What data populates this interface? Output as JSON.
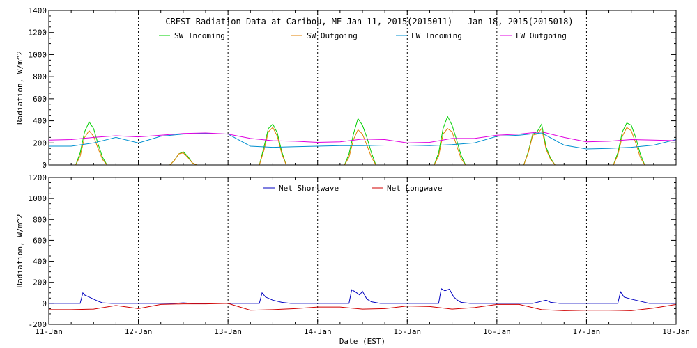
{
  "title": "CREST Radiation Data at Caribou, ME   Jan 11, 2015(2015011) - Jan 18, 2015(2015018)",
  "xlabel": "Date (EST)",
  "chart_data": [
    {
      "type": "line",
      "ylabel": "Radiation, W/m^2",
      "ylim": [
        0,
        1400
      ],
      "yticks": [
        0,
        200,
        400,
        600,
        800,
        1000,
        1200,
        1400
      ],
      "xlim": [
        0,
        7
      ],
      "xticks": [
        "11-Jan",
        "12-Jan",
        "13-Jan",
        "14-Jan",
        "15-Jan",
        "16-Jan",
        "17-Jan",
        "18-Jan"
      ],
      "grid": true,
      "legend": "top-center",
      "series": [
        {
          "name": "SW Incoming",
          "color": "#00d000",
          "x": [
            0,
            0.3,
            0.35,
            0.4,
            0.45,
            0.5,
            0.55,
            0.6,
            0.65,
            0.7,
            1,
            1.3,
            1.35,
            1.4,
            1.45,
            1.5,
            1.55,
            1.6,
            1.65,
            1.7,
            2,
            2.3,
            2.35,
            2.4,
            2.45,
            2.5,
            2.55,
            2.6,
            2.65,
            2.7,
            3,
            3.3,
            3.35,
            3.4,
            3.45,
            3.5,
            3.55,
            3.6,
            3.65,
            3.7,
            4,
            4.3,
            4.35,
            4.4,
            4.45,
            4.5,
            4.55,
            4.6,
            4.65,
            4.7,
            5,
            5.3,
            5.35,
            5.4,
            5.45,
            5.5,
            5.55,
            5.6,
            5.65,
            5.7,
            6,
            6.3,
            6.35,
            6.4,
            6.45,
            6.5,
            6.55,
            6.6,
            6.65,
            6.7,
            7
          ],
          "y": [
            0,
            0,
            110,
            300,
            390,
            330,
            190,
            70,
            0,
            0,
            0,
            0,
            0,
            40,
            100,
            120,
            80,
            20,
            0,
            0,
            0,
            0,
            0,
            160,
            330,
            370,
            290,
            120,
            0,
            0,
            0,
            0,
            100,
            280,
            420,
            360,
            250,
            110,
            0,
            0,
            0,
            0,
            110,
            330,
            440,
            360,
            230,
            90,
            0,
            0,
            0,
            0,
            120,
            280,
            300,
            370,
            160,
            60,
            0,
            0,
            0,
            0,
            110,
            300,
            380,
            360,
            250,
            100,
            0,
            0,
            0
          ]
        },
        {
          "name": "SW Outgoing",
          "color": "#e08000",
          "x": [
            0,
            0.3,
            0.35,
            0.4,
            0.45,
            0.5,
            0.55,
            0.6,
            0.65,
            0.7,
            1,
            1.3,
            1.35,
            1.4,
            1.45,
            1.5,
            1.55,
            1.6,
            1.65,
            1.7,
            2,
            2.3,
            2.35,
            2.4,
            2.45,
            2.5,
            2.55,
            2.6,
            2.65,
            2.7,
            3,
            3.3,
            3.35,
            3.4,
            3.45,
            3.5,
            3.55,
            3.6,
            3.65,
            3.7,
            4,
            4.3,
            4.35,
            4.4,
            4.45,
            4.5,
            4.55,
            4.6,
            4.65,
            4.7,
            5,
            5.3,
            5.35,
            5.4,
            5.45,
            5.5,
            5.55,
            5.6,
            5.65,
            5.7,
            6,
            6.3,
            6.35,
            6.4,
            6.45,
            6.5,
            6.55,
            6.6,
            6.65,
            6.7,
            7
          ],
          "y": [
            0,
            0,
            80,
            250,
            310,
            260,
            150,
            50,
            0,
            0,
            0,
            0,
            0,
            40,
            100,
            110,
            70,
            20,
            0,
            0,
            0,
            0,
            0,
            130,
            300,
            340,
            260,
            100,
            0,
            0,
            0,
            0,
            70,
            230,
            320,
            280,
            180,
            70,
            0,
            0,
            0,
            0,
            80,
            280,
            330,
            300,
            180,
            60,
            0,
            0,
            0,
            0,
            110,
            270,
            280,
            330,
            140,
            50,
            0,
            0,
            0,
            0,
            90,
            260,
            340,
            310,
            200,
            70,
            0,
            0,
            0
          ]
        },
        {
          "name": "LW Incoming",
          "color": "#0090d0",
          "x": [
            0,
            0.25,
            0.5,
            0.75,
            1,
            1.25,
            1.5,
            1.75,
            2,
            2.25,
            2.5,
            2.75,
            3,
            3.25,
            3.5,
            3.75,
            4,
            4.25,
            4.5,
            4.75,
            5,
            5.25,
            5.5,
            5.75,
            6,
            6.25,
            6.5,
            6.75,
            7
          ],
          "y": [
            170,
            170,
            200,
            250,
            200,
            260,
            280,
            285,
            280,
            170,
            160,
            165,
            170,
            175,
            175,
            180,
            180,
            175,
            185,
            200,
            260,
            270,
            290,
            180,
            145,
            150,
            160,
            180,
            230
          ]
        },
        {
          "name": "LW Outgoing",
          "color": "#e000e0",
          "x": [
            0,
            0.25,
            0.5,
            0.75,
            1,
            1.25,
            1.5,
            1.75,
            2,
            2.25,
            2.5,
            2.75,
            3,
            3.25,
            3.5,
            3.75,
            4,
            4.25,
            4.5,
            4.75,
            5,
            5.25,
            5.5,
            5.75,
            6,
            6.25,
            6.5,
            6.75,
            7
          ],
          "y": [
            225,
            230,
            250,
            265,
            255,
            270,
            285,
            290,
            280,
            240,
            220,
            215,
            205,
            210,
            235,
            230,
            200,
            205,
            240,
            240,
            270,
            280,
            300,
            250,
            210,
            215,
            230,
            225,
            220
          ]
        }
      ]
    },
    {
      "type": "line",
      "ylabel": "Radiation, W/m^2",
      "ylim": [
        -200,
        1200
      ],
      "yticks": [
        -200,
        0,
        200,
        400,
        600,
        800,
        1000,
        1200
      ],
      "xlim": [
        0,
        7
      ],
      "xticks": [
        "11-Jan",
        "12-Jan",
        "13-Jan",
        "14-Jan",
        "15-Jan",
        "16-Jan",
        "17-Jan",
        "18-Jan"
      ],
      "grid": true,
      "legend": "top-center",
      "series": [
        {
          "name": "Net Shortwave",
          "color": "#0000c0",
          "x": [
            0,
            0.35,
            0.38,
            0.4,
            0.45,
            0.5,
            0.55,
            0.6,
            0.7,
            1,
            1.4,
            1.5,
            1.6,
            2,
            2.35,
            2.38,
            2.42,
            2.5,
            2.6,
            2.7,
            3,
            3.35,
            3.38,
            3.42,
            3.47,
            3.5,
            3.55,
            3.6,
            3.7,
            4,
            4.35,
            4.38,
            4.42,
            4.47,
            4.52,
            4.56,
            4.6,
            4.7,
            5,
            5.4,
            5.45,
            5.5,
            5.55,
            5.6,
            5.7,
            6,
            6.35,
            6.38,
            6.42,
            6.5,
            6.6,
            6.7,
            7
          ],
          "y": [
            0,
            0,
            100,
            80,
            60,
            40,
            20,
            5,
            0,
            0,
            0,
            5,
            0,
            0,
            0,
            100,
            60,
            30,
            10,
            0,
            0,
            0,
            130,
            110,
            80,
            115,
            40,
            15,
            0,
            0,
            0,
            140,
            120,
            135,
            60,
            30,
            10,
            0,
            0,
            0,
            10,
            20,
            30,
            10,
            0,
            0,
            0,
            110,
            60,
            40,
            20,
            0,
            0
          ]
        },
        {
          "name": "Net Longwave",
          "color": "#d00000",
          "x": [
            0,
            0.25,
            0.5,
            0.75,
            1,
            1.25,
            1.5,
            1.75,
            2,
            2.25,
            2.5,
            2.75,
            3,
            3.25,
            3.5,
            3.75,
            4,
            4.25,
            4.5,
            4.75,
            5,
            5.25,
            5.5,
            5.75,
            6,
            6.25,
            6.5,
            6.75,
            7
          ],
          "y": [
            -60,
            -60,
            -55,
            -20,
            -50,
            -10,
            -5,
            -5,
            0,
            -65,
            -60,
            -50,
            -35,
            -35,
            -55,
            -50,
            -25,
            -30,
            -55,
            -40,
            -10,
            -10,
            -60,
            -70,
            -65,
            -65,
            -70,
            -45,
            -10
          ]
        }
      ]
    }
  ]
}
